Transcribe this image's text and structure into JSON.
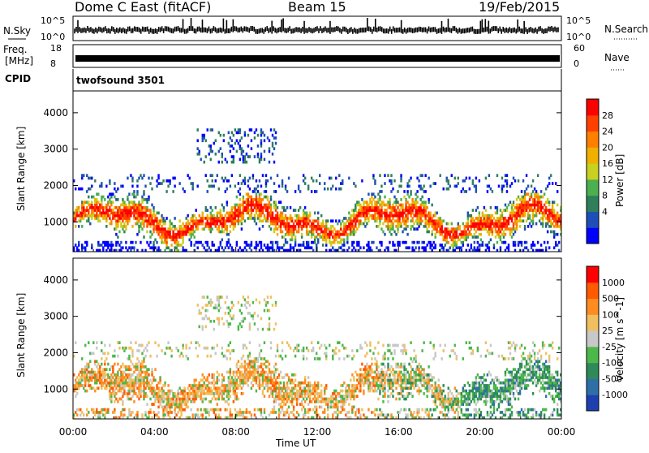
{
  "header": {
    "station": "Dome C East (fitACF)",
    "beam": "Beam 15",
    "date": "19/Feb/2015"
  },
  "aux_panels": {
    "nsky_label": "N.Sky",
    "nsky_ticks": [
      "10^5",
      "10^0"
    ],
    "nsearch_label": "N.Search",
    "nsearch_ticks": [
      "10^5",
      "10^0"
    ],
    "freq_label": "Freq.",
    "freq_unit": "[MHz]",
    "freq_ticks": [
      "18",
      "8"
    ],
    "nave_label": "Nave",
    "nave_ticks": [
      "60",
      "0"
    ],
    "cpid_label": "CPID",
    "cpid_value": "twofsound 3501"
  },
  "chart_data": [
    {
      "type": "heatmap",
      "name": "power",
      "ylabel": "Slant Range [km]",
      "xlabel": "Time UT",
      "x_ticks": [
        "00:00",
        "04:00",
        "08:00",
        "12:00",
        "16:00",
        "20:00",
        "00:00"
      ],
      "y_ticks": [
        1000,
        2000,
        3000,
        4000
      ],
      "ylim": [
        180,
        4600
      ],
      "xlim_hours": [
        0,
        24
      ],
      "colorbar": {
        "label": "Power [dB]",
        "ticks": [
          "28",
          "24",
          "20",
          "16",
          "12",
          "8",
          "4"
        ],
        "colors": [
          "#0000ff",
          "#1e4fb8",
          "#2f7f5a",
          "#4caf50",
          "#c8d020",
          "#f0b000",
          "#ff7f00",
          "#ff4000",
          "#ff0000"
        ]
      }
    },
    {
      "type": "heatmap",
      "name": "velocity",
      "ylabel": "Slant Range [km]",
      "xlabel": "Time UT",
      "x_ticks": [
        "00:00",
        "04:00",
        "08:00",
        "12:00",
        "16:00",
        "20:00",
        "00:00"
      ],
      "y_ticks": [
        1000,
        2000,
        3000,
        4000
      ],
      "ylim": [
        180,
        4600
      ],
      "xlim_hours": [
        0,
        24
      ],
      "colorbar": {
        "label": "Velocity [m s^-1]",
        "ticks": [
          "1000",
          "500",
          "100",
          "25",
          "-25",
          "-100",
          "-500",
          "-1000"
        ],
        "colors": [
          "#1e3fb0",
          "#2f6fa8",
          "#2f8a5a",
          "#4cb84a",
          "#c8c8c8",
          "#f0c060",
          "#ff8c20",
          "#ff5a00",
          "#ff0000"
        ]
      }
    }
  ],
  "x_axis_label": "Time UT"
}
